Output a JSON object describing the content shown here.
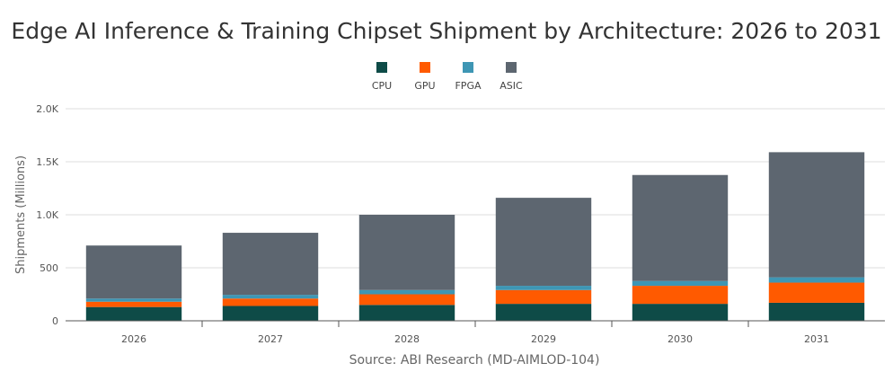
{
  "chart_data": {
    "type": "bar",
    "stacked": true,
    "title": "Edge AI Inference & Training Chipset Shipment by Architecture: 2026 to 2031",
    "xlabel": "",
    "ylabel": "Shipments (Millions)",
    "source": "Source: ABI Research (MD-AIMLOD-104)",
    "categories": [
      "2026",
      "2027",
      "2028",
      "2029",
      "2030",
      "2031"
    ],
    "ylim": [
      0,
      2000
    ],
    "yticks": [
      0,
      500,
      1000,
      1500,
      2000
    ],
    "ytick_labels": [
      "0",
      "500",
      "1.0K",
      "1.5K",
      "2.0K"
    ],
    "grid": true,
    "legend_position": "top-center",
    "series": [
      {
        "name": "CPU",
        "color": "#0e4b47",
        "values": [
          130,
          140,
          150,
          160,
          160,
          170
        ]
      },
      {
        "name": "GPU",
        "color": "#ff5a00",
        "values": [
          50,
          70,
          100,
          130,
          170,
          190
        ]
      },
      {
        "name": "FPGA",
        "color": "#3e96b4",
        "values": [
          30,
          35,
          40,
          40,
          45,
          50
        ]
      },
      {
        "name": "ASIC",
        "color": "#5d6670",
        "values": [
          500,
          585,
          710,
          830,
          1000,
          1180
        ]
      }
    ]
  }
}
